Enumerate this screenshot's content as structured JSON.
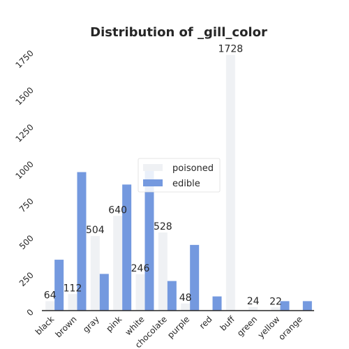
{
  "chart_data": {
    "type": "bar",
    "title": "Distribution of _gill_color",
    "xlabel": "",
    "ylabel": "",
    "categories": [
      "black",
      "brown",
      "gray",
      "pink",
      "white",
      "chocolate",
      "purple",
      "red",
      "buff",
      "green",
      "yellow",
      "orange"
    ],
    "series": [
      {
        "name": "poisoned",
        "color": "#eff1f4",
        "values": [
          64,
          112,
          504,
          640,
          246,
          528,
          48,
          0,
          1728,
          24,
          22,
          0
        ],
        "labels": [
          "64",
          "112",
          "504",
          "640",
          "246",
          "528",
          "48",
          "",
          "1728",
          "24",
          "22",
          ""
        ]
      },
      {
        "name": "edible",
        "color": "#7499df",
        "values": [
          344,
          936,
          248,
          852,
          956,
          200,
          444,
          96,
          0,
          0,
          64,
          64
        ]
      }
    ],
    "ylim": [
      0,
      1800
    ],
    "yticks": [
      "0",
      "250",
      "500",
      "750",
      "1000",
      "1250",
      "1500",
      "1750"
    ],
    "grid": false,
    "legend_position": "center"
  }
}
